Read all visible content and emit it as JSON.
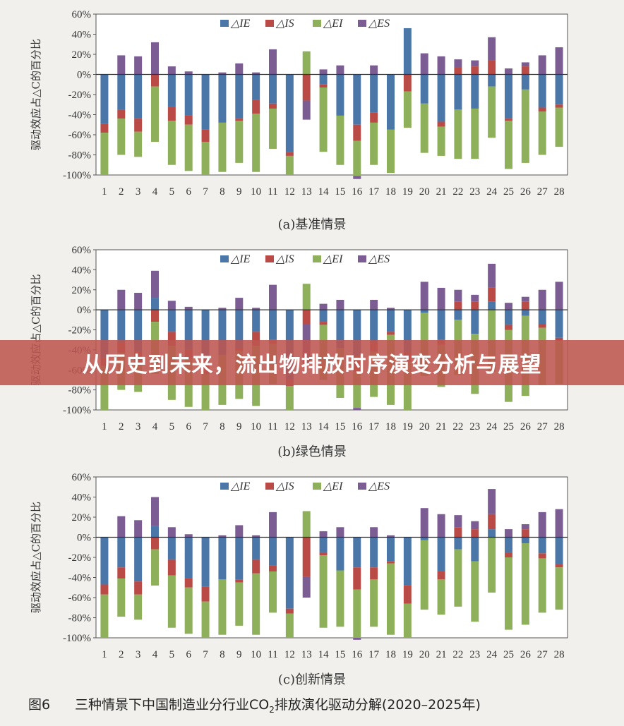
{
  "overlay_title": "从历史到未来，流出物排放时序演变分析与展望",
  "figure_caption": {
    "number": "图6",
    "text_before": "三种情景下中国制造业分行业CO",
    "subscript": "2",
    "text_after": "排放演化驱动分解(2020–2025年)"
  },
  "colors": {
    "IE": "#4a76a8",
    "IS": "#b94a46",
    "EI": "#8eb05a",
    "ES": "#7c5d93"
  },
  "chart_data": [
    {
      "type": "bar",
      "subtype": "stacked",
      "caption": "(a)基准情景",
      "ylabel": "驱动效应占△C的百分比",
      "ylim": [
        -100,
        60
      ],
      "yticks": [
        "60%",
        "40%",
        "20%",
        "0%",
        "-20%",
        "-40%",
        "-60%",
        "-80%",
        "-100%"
      ],
      "categories": [
        "1",
        "2",
        "3",
        "4",
        "5",
        "6",
        "7",
        "8",
        "9",
        "10",
        "11",
        "12",
        "13",
        "14",
        "15",
        "16",
        "17",
        "18",
        "19",
        "20",
        "21",
        "22",
        "23",
        "24",
        "25",
        "26",
        "27",
        "28"
      ],
      "series": [
        {
          "name": "△IE",
          "key": "IE",
          "values": [
            -49,
            -35,
            -44,
            0,
            -32,
            -41,
            -55,
            -48,
            -44,
            -25,
            -29,
            -77,
            0,
            -10,
            -41,
            -50,
            -38,
            -55,
            46,
            -29,
            -47,
            -35,
            -34,
            -12,
            -44,
            -15,
            -33,
            -30
          ]
        },
        {
          "name": "△IS",
          "key": "IS",
          "values": [
            -9,
            -9,
            -13,
            -12,
            -14,
            -9,
            -12,
            0,
            -2,
            -14,
            -5,
            -4,
            -26,
            -3,
            0,
            -16,
            -10,
            0,
            -17,
            0,
            -5,
            7,
            8,
            14,
            -2,
            8,
            -4,
            -3
          ]
        },
        {
          "name": "△EI",
          "key": "EI",
          "values": [
            -42,
            -36,
            -25,
            -55,
            -44,
            -46,
            -33,
            -49,
            -42,
            -58,
            -40,
            -19,
            23,
            -64,
            -49,
            -35,
            -42,
            -43,
            -36,
            -49,
            -29,
            -49,
            -50,
            -51,
            -48,
            -73,
            -43,
            -39
          ]
        },
        {
          "name": "△ES",
          "key": "ES",
          "values": [
            0,
            19,
            18,
            32,
            8,
            3,
            0,
            2,
            11,
            2,
            25,
            0,
            -19,
            5,
            9,
            -3,
            9,
            0,
            0,
            21,
            18,
            8,
            6,
            23,
            6,
            4,
            19,
            27
          ]
        }
      ]
    },
    {
      "type": "bar",
      "subtype": "stacked",
      "caption": "(b)绿色情景",
      "ylabel": "驱动效应占△C的百分比",
      "ylim": [
        -100,
        60
      ],
      "yticks": [
        "60%",
        "40%",
        "20%",
        "0%",
        "-20%",
        "-40%",
        "-60%",
        "-80%",
        "-100%"
      ],
      "categories": [
        "1",
        "2",
        "3",
        "4",
        "5",
        "6",
        "7",
        "8",
        "9",
        "10",
        "11",
        "12",
        "13",
        "14",
        "15",
        "16",
        "17",
        "18",
        "19",
        "20",
        "21",
        "22",
        "23",
        "24",
        "25",
        "26",
        "27",
        "28"
      ],
      "series": [
        {
          "name": "△IE",
          "key": "IE",
          "values": [
            -48,
            -33,
            -42,
            12,
            -22,
            -40,
            -50,
            -45,
            -38,
            -22,
            -30,
            -70,
            0,
            -12,
            -38,
            -46,
            -32,
            -22,
            -42,
            -3,
            -30,
            -10,
            -24,
            8,
            -15,
            -6,
            -14,
            -28
          ]
        },
        {
          "name": "△IS",
          "key": "IS",
          "values": [
            -8,
            -10,
            -12,
            -12,
            -14,
            -9,
            -14,
            0,
            -3,
            -14,
            -4,
            -6,
            -14,
            -3,
            0,
            -16,
            -10,
            -3,
            -10,
            0,
            -5,
            8,
            8,
            14,
            -5,
            8,
            -4,
            -3
          ]
        },
        {
          "name": "△EI",
          "key": "EI",
          "values": [
            -44,
            -37,
            -28,
            -52,
            -54,
            -48,
            -36,
            -50,
            -48,
            -60,
            -40,
            -24,
            26,
            -55,
            -50,
            -36,
            -45,
            -70,
            -48,
            -63,
            -42,
            -55,
            -60,
            -62,
            -72,
            -80,
            -57,
            -43
          ]
        },
        {
          "name": "△ES",
          "key": "ES",
          "values": [
            0,
            20,
            17,
            27,
            9,
            3,
            0,
            2,
            12,
            2,
            25,
            0,
            -40,
            6,
            10,
            -2,
            10,
            2,
            0,
            28,
            22,
            12,
            7,
            24,
            7,
            5,
            20,
            28
          ]
        }
      ]
    },
    {
      "type": "bar",
      "subtype": "stacked",
      "caption": "(c)创新情景",
      "ylabel": "驱动效应占△C的百分比",
      "ylim": [
        -100,
        60
      ],
      "yticks": [
        "60%",
        "40%",
        "20%",
        "0%",
        "-20%",
        "-40%",
        "-60%",
        "-80%",
        "-100%"
      ],
      "categories": [
        "1",
        "2",
        "3",
        "4",
        "5",
        "6",
        "7",
        "8",
        "9",
        "10",
        "11",
        "12",
        "13",
        "14",
        "15",
        "16",
        "17",
        "18",
        "19",
        "20",
        "21",
        "22",
        "23",
        "24",
        "25",
        "26",
        "27",
        "28"
      ],
      "series": [
        {
          "name": "△IE",
          "key": "IE",
          "values": [
            -47,
            -30,
            -44,
            11,
            -22,
            -41,
            -49,
            -42,
            -42,
            -22,
            -28,
            -71,
            0,
            -15,
            -33,
            -30,
            -30,
            -24,
            -48,
            -3,
            -34,
            -12,
            -24,
            8,
            -15,
            -6,
            -16,
            -27
          ]
        },
        {
          "name": "△IS",
          "key": "IS",
          "values": [
            -10,
            -11,
            -13,
            -12,
            -16,
            -9,
            -15,
            0,
            -3,
            -14,
            -6,
            -5,
            -39,
            -3,
            0,
            -22,
            -12,
            -2,
            -18,
            0,
            -8,
            10,
            8,
            15,
            -5,
            8,
            -5,
            -3
          ]
        },
        {
          "name": "△EI",
          "key": "EI",
          "values": [
            -43,
            -38,
            -25,
            -36,
            -52,
            -46,
            -36,
            -55,
            -43,
            -61,
            -41,
            -24,
            26,
            -72,
            -56,
            -48,
            -47,
            -71,
            -34,
            -69,
            -35,
            -57,
            -60,
            -55,
            -72,
            -81,
            -54,
            -42
          ]
        },
        {
          "name": "△ES",
          "key": "ES",
          "values": [
            0,
            21,
            17,
            29,
            10,
            3,
            0,
            2,
            12,
            2,
            25,
            0,
            -21,
            6,
            10,
            -2,
            10,
            2,
            0,
            29,
            23,
            12,
            8,
            25,
            8,
            5,
            25,
            28
          ]
        }
      ]
    }
  ]
}
